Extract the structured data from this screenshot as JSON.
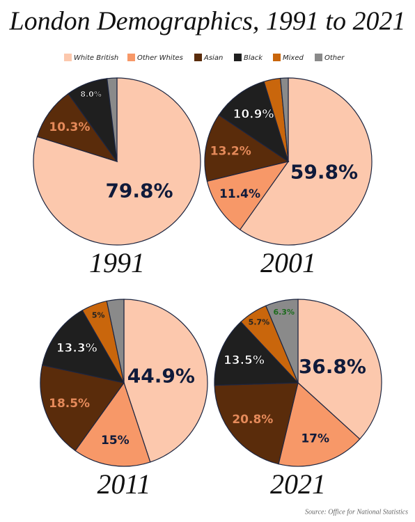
{
  "title": "London Demographics, 1991 to 2021",
  "source": "Source: Office for National Statistics",
  "chart_data": [
    {
      "type": "pie",
      "title": "1991",
      "categories": [
        "White British",
        "Other Whites",
        "Asian",
        "Black",
        "Mixed",
        "Other"
      ],
      "colors": [
        "#fcc8ad",
        "#f79868",
        "#5a2c0b",
        "#1f1f1f",
        "#c9660c",
        "#8a8a8a"
      ],
      "values": [
        79.8,
        null,
        10.3,
        8.0,
        null,
        1.9
      ],
      "value_labels": [
        "79.8%",
        null,
        "10.3%",
        "8.0%",
        null,
        null
      ]
    },
    {
      "type": "pie",
      "title": "2001",
      "categories": [
        "White British",
        "Other Whites",
        "Asian",
        "Black",
        "Mixed",
        "Other"
      ],
      "colors": [
        "#fcc8ad",
        "#f79868",
        "#5a2c0b",
        "#1f1f1f",
        "#c9660c",
        "#8a8a8a"
      ],
      "values": [
        59.8,
        11.4,
        13.2,
        10.9,
        3.2,
        1.5
      ],
      "value_labels": [
        "59.8%",
        "11.4%",
        "13.2%",
        "10.9%",
        null,
        null
      ]
    },
    {
      "type": "pie",
      "title": "2011",
      "categories": [
        "White British",
        "Other Whites",
        "Asian",
        "Black",
        "Mixed",
        "Other"
      ],
      "colors": [
        "#fcc8ad",
        "#f79868",
        "#5a2c0b",
        "#1f1f1f",
        "#c9660c",
        "#8a8a8a"
      ],
      "values": [
        44.9,
        15,
        18.5,
        13.3,
        5,
        3.3
      ],
      "value_labels": [
        "44.9%",
        "15%",
        "18.5%",
        "13.3%",
        "5%",
        null
      ]
    },
    {
      "type": "pie",
      "title": "2021",
      "categories": [
        "White British",
        "Other Whites",
        "Asian",
        "Black",
        "Mixed",
        "Other"
      ],
      "colors": [
        "#fcc8ad",
        "#f79868",
        "#5a2c0b",
        "#1f1f1f",
        "#c9660c",
        "#8a8a8a"
      ],
      "values": [
        36.8,
        17,
        20.8,
        13.5,
        5.7,
        6.3
      ],
      "value_labels": [
        "36.8%",
        "17%",
        "20.8%",
        "13.5%",
        "5.7%",
        "6.3%"
      ]
    }
  ]
}
